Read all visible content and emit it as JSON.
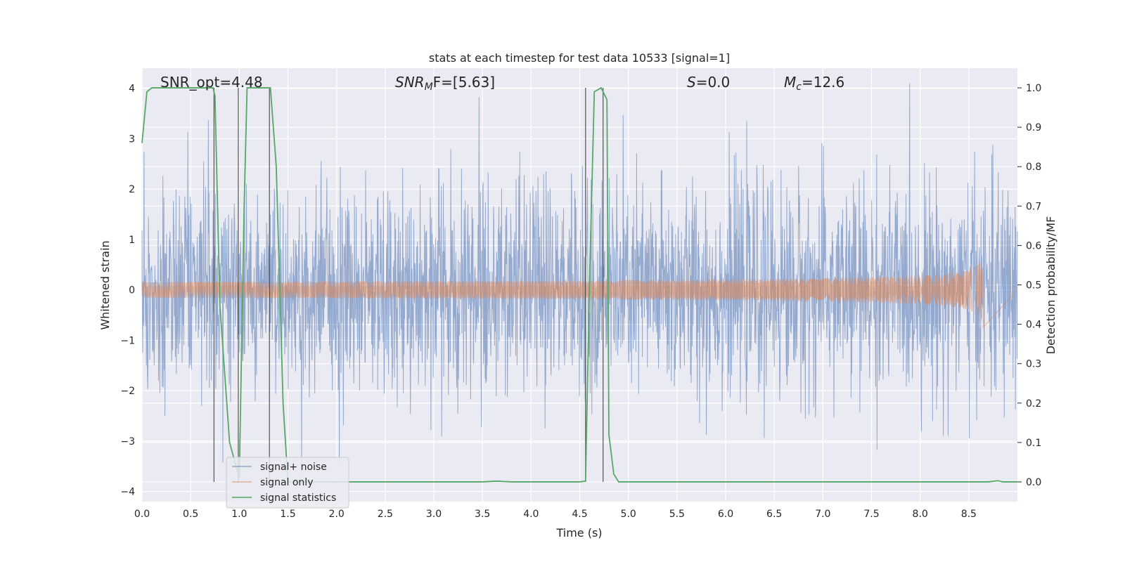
{
  "chart_data": {
    "type": "line",
    "title": "stats at each timestep for test data 10533 [signal=1]",
    "xlabel": "Time (s)",
    "ylabel_left": "Whitened strain",
    "ylabel_right": "Detection probability/MF",
    "xlim": [
      0.0,
      9.0
    ],
    "ylim_left": [
      -4.2,
      4.4
    ],
    "ylim_right": [
      -0.05,
      1.05
    ],
    "xticks": [
      "0.0",
      "0.5",
      "1.0",
      "1.5",
      "2.0",
      "2.5",
      "3.0",
      "3.5",
      "4.0",
      "4.5",
      "5.0",
      "5.5",
      "6.0",
      "6.5",
      "7.0",
      "7.5",
      "8.0",
      "8.5"
    ],
    "yticks_left": [
      "4",
      "3",
      "2",
      "1",
      "0",
      "−1",
      "−2",
      "−3",
      "−4"
    ],
    "yticks_right": [
      "1.0",
      "0.9",
      "0.8",
      "0.7",
      "0.6",
      "0.5",
      "0.4",
      "0.3",
      "0.2",
      "0.1",
      "0.0"
    ],
    "grid": true,
    "background": "#eaeaf2",
    "annotations": {
      "snr_opt": "SNR_opt=4.48",
      "snr_mf": "SNR",
      "snr_mf_sub": "M",
      "snr_mf_rest": "F=[5.63]",
      "s": "S",
      "s_rest": "=0.0",
      "mc": "M",
      "mc_sub": "c",
      "mc_rest": "=12.6"
    },
    "legend": {
      "placement": "lower-left",
      "entries": [
        {
          "label": "signal+ noise",
          "color": "#4c72b0"
        },
        {
          "label": "signal only",
          "color": "#dd8452"
        },
        {
          "label": "signal statistics",
          "color": "#55a868"
        }
      ]
    },
    "series": [
      {
        "name": "signal+ noise",
        "color": "#4c72b0",
        "style": "noise",
        "x_range": [
          0.0,
          9.0
        ],
        "envelope": [
          -4.0,
          4.1
        ]
      },
      {
        "name": "signal only",
        "color": "#dd8452",
        "style": "chirp",
        "x_range": [
          0.0,
          8.65
        ],
        "peak_time": 8.65,
        "peak_amplitude": 1.0
      },
      {
        "name": "signal statistics",
        "color": "#55a868",
        "axis": "right",
        "x": [
          0.0,
          0.05,
          0.1,
          0.2,
          0.3,
          0.5,
          0.7,
          0.73,
          0.75,
          0.8,
          0.9,
          1.0,
          1.05,
          1.08,
          1.2,
          1.3,
          1.32,
          1.38,
          1.45,
          1.5,
          2.0,
          2.5,
          3.0,
          3.5,
          3.65,
          3.72,
          3.8,
          4.0,
          4.5,
          4.56,
          4.6,
          4.65,
          4.72,
          4.78,
          4.8,
          4.85,
          4.9,
          5.0,
          6.0,
          7.0,
          8.0,
          8.7,
          8.8,
          8.85,
          8.9,
          9.0
        ],
        "y": [
          0.86,
          0.99,
          1.0,
          1.0,
          1.0,
          1.0,
          1.0,
          1.0,
          0.98,
          0.45,
          0.1,
          0.01,
          0.7,
          1.0,
          1.0,
          1.0,
          1.0,
          0.8,
          0.2,
          0.0,
          0.0,
          0.0,
          0.0,
          0.0,
          0.002,
          0.001,
          0.0,
          0.0,
          0.0,
          0.002,
          0.5,
          0.99,
          1.0,
          0.97,
          0.12,
          0.02,
          0.0,
          0.0,
          0.0,
          0.0,
          0.0,
          0.0,
          0.003,
          0.0,
          0.0,
          0.0
        ]
      }
    ],
    "vertical_lines": [
      0.74,
      0.99,
      1.31,
      4.56,
      4.74
    ]
  }
}
